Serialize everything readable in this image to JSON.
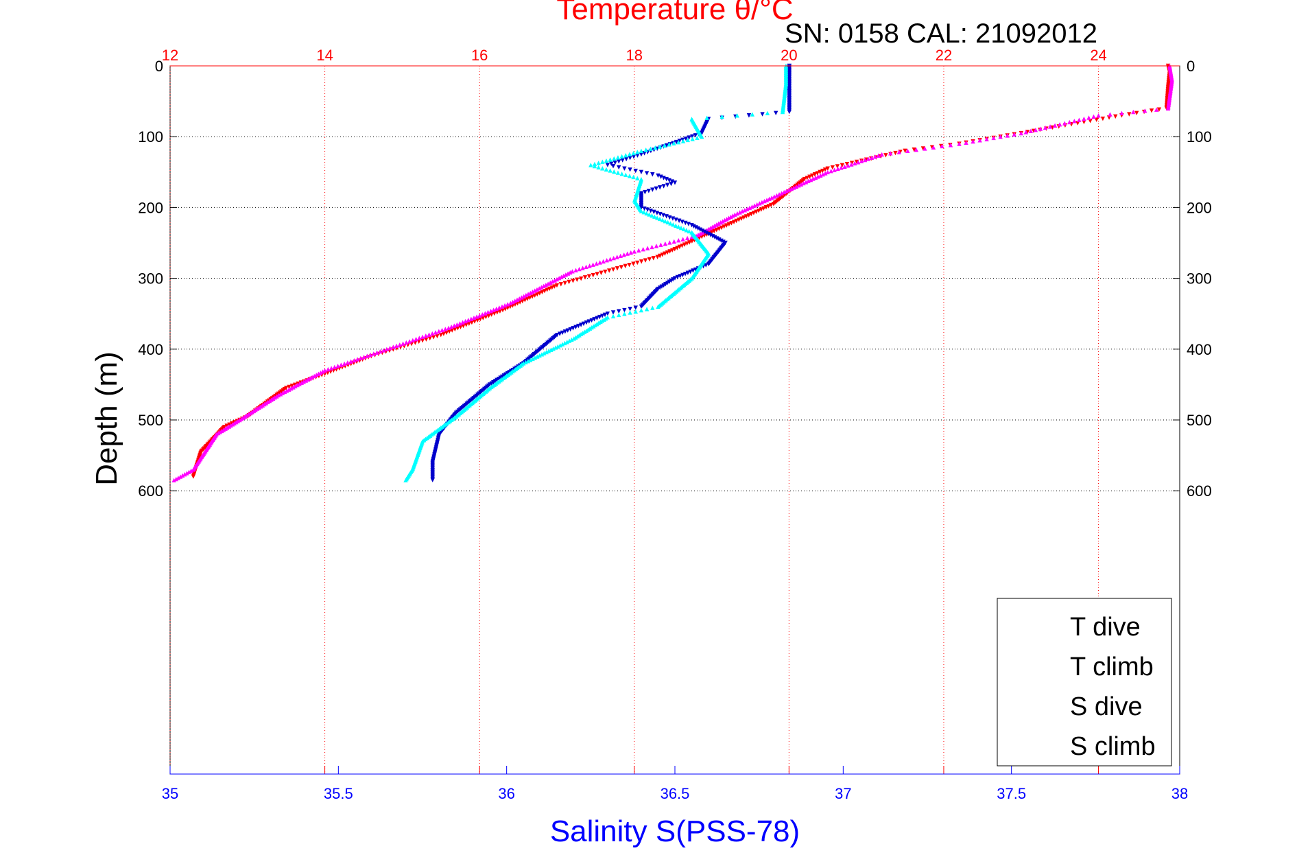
{
  "chart_data": {
    "type": "scatter",
    "title": "Temperature θ/°C",
    "subtitle": "SN: 0158  CAL: 21092012",
    "ylabel": "Depth (m)",
    "xlabel_bottom": "Salinity S(PSS-78)",
    "xlabel_top": "Temperature θ/°C",
    "depth_range": [
      0,
      1000
    ],
    "depth_ticks": [
      0,
      100,
      200,
      300,
      400,
      500,
      600
    ],
    "temperature_range": [
      12,
      25.05
    ],
    "temperature_ticks": [
      12,
      14,
      16,
      18,
      20,
      22,
      24
    ],
    "salinity_range": [
      35,
      38
    ],
    "salinity_ticks": [
      35,
      35.5,
      36,
      36.5,
      37,
      37.5,
      38
    ],
    "salinity_tick_labels": [
      "35",
      "35.5",
      "36",
      "36.5",
      "37",
      "37.5",
      "38"
    ],
    "grid": true,
    "legend_position": "bottom-right",
    "colors": {
      "temperature_axis": "#ff0000",
      "salinity_axis": "#0000ff",
      "T dive": "#ff0000",
      "T climb": "#ff00ff",
      "S dive": "#0000cc",
      "S climb": "#00ffff"
    },
    "legend": [
      "T dive",
      "T climb",
      "S dive",
      "S climb"
    ],
    "series": [
      {
        "name": "T dive",
        "axis": "temperature",
        "marker": "triangle-down",
        "points": [
          [
            24.9,
            0
          ],
          [
            24.92,
            10
          ],
          [
            24.9,
            30
          ],
          [
            24.88,
            60
          ],
          [
            24.3,
            70
          ],
          [
            23.0,
            95
          ],
          [
            22.2,
            110
          ],
          [
            21.5,
            120
          ],
          [
            20.5,
            145
          ],
          [
            20.2,
            160
          ],
          [
            19.8,
            195
          ],
          [
            19.0,
            235
          ],
          [
            18.3,
            270
          ],
          [
            17.0,
            310
          ],
          [
            16.3,
            345
          ],
          [
            15.5,
            380
          ],
          [
            14.6,
            410
          ],
          [
            14.0,
            435
          ],
          [
            13.5,
            455
          ],
          [
            13.0,
            495
          ],
          [
            12.7,
            510
          ],
          [
            12.4,
            545
          ],
          [
            12.3,
            580
          ]
        ]
      },
      {
        "name": "T climb",
        "axis": "temperature",
        "marker": "triangle-up",
        "points": [
          [
            24.92,
            0
          ],
          [
            24.95,
            20
          ],
          [
            24.9,
            60
          ],
          [
            24.0,
            70
          ],
          [
            23.0,
            95
          ],
          [
            22.2,
            110
          ],
          [
            21.2,
            125
          ],
          [
            20.5,
            150
          ],
          [
            20.0,
            175
          ],
          [
            19.3,
            210
          ],
          [
            18.8,
            240
          ],
          [
            18.0,
            262
          ],
          [
            17.2,
            290
          ],
          [
            16.4,
            335
          ],
          [
            15.6,
            370
          ],
          [
            14.8,
            400
          ],
          [
            14.0,
            430
          ],
          [
            13.4,
            465
          ],
          [
            12.9,
            500
          ],
          [
            12.6,
            520
          ],
          [
            12.3,
            570
          ],
          [
            12.05,
            585
          ]
        ]
      },
      {
        "name": "S dive",
        "axis": "salinity",
        "marker": "triangle-down",
        "points": [
          [
            36.84,
            0
          ],
          [
            36.84,
            20
          ],
          [
            36.84,
            65
          ],
          [
            36.6,
            75
          ],
          [
            36.58,
            95
          ],
          [
            36.4,
            125
          ],
          [
            36.3,
            140
          ],
          [
            36.45,
            155
          ],
          [
            36.5,
            165
          ],
          [
            36.4,
            180
          ],
          [
            36.4,
            200
          ],
          [
            36.55,
            225
          ],
          [
            36.65,
            250
          ],
          [
            36.6,
            280
          ],
          [
            36.5,
            300
          ],
          [
            36.45,
            315
          ],
          [
            36.4,
            340
          ],
          [
            36.3,
            350
          ],
          [
            36.15,
            380
          ],
          [
            36.05,
            420
          ],
          [
            35.95,
            450
          ],
          [
            35.85,
            490
          ],
          [
            35.8,
            520
          ],
          [
            35.78,
            560
          ],
          [
            35.78,
            585
          ]
        ]
      },
      {
        "name": "S climb",
        "axis": "salinity",
        "marker": "triangle-up",
        "points": [
          [
            36.83,
            0
          ],
          [
            36.83,
            25
          ],
          [
            36.82,
            65
          ],
          [
            36.55,
            75
          ],
          [
            36.58,
            100
          ],
          [
            36.4,
            120
          ],
          [
            36.25,
            140
          ],
          [
            36.4,
            160
          ],
          [
            36.38,
            190
          ],
          [
            36.4,
            205
          ],
          [
            36.55,
            235
          ],
          [
            36.6,
            265
          ],
          [
            36.55,
            300
          ],
          [
            36.5,
            320
          ],
          [
            36.45,
            340
          ],
          [
            36.3,
            355
          ],
          [
            36.2,
            385
          ],
          [
            36.05,
            420
          ],
          [
            35.95,
            455
          ],
          [
            35.85,
            495
          ],
          [
            35.75,
            530
          ],
          [
            35.72,
            570
          ],
          [
            35.7,
            585
          ]
        ]
      }
    ]
  }
}
